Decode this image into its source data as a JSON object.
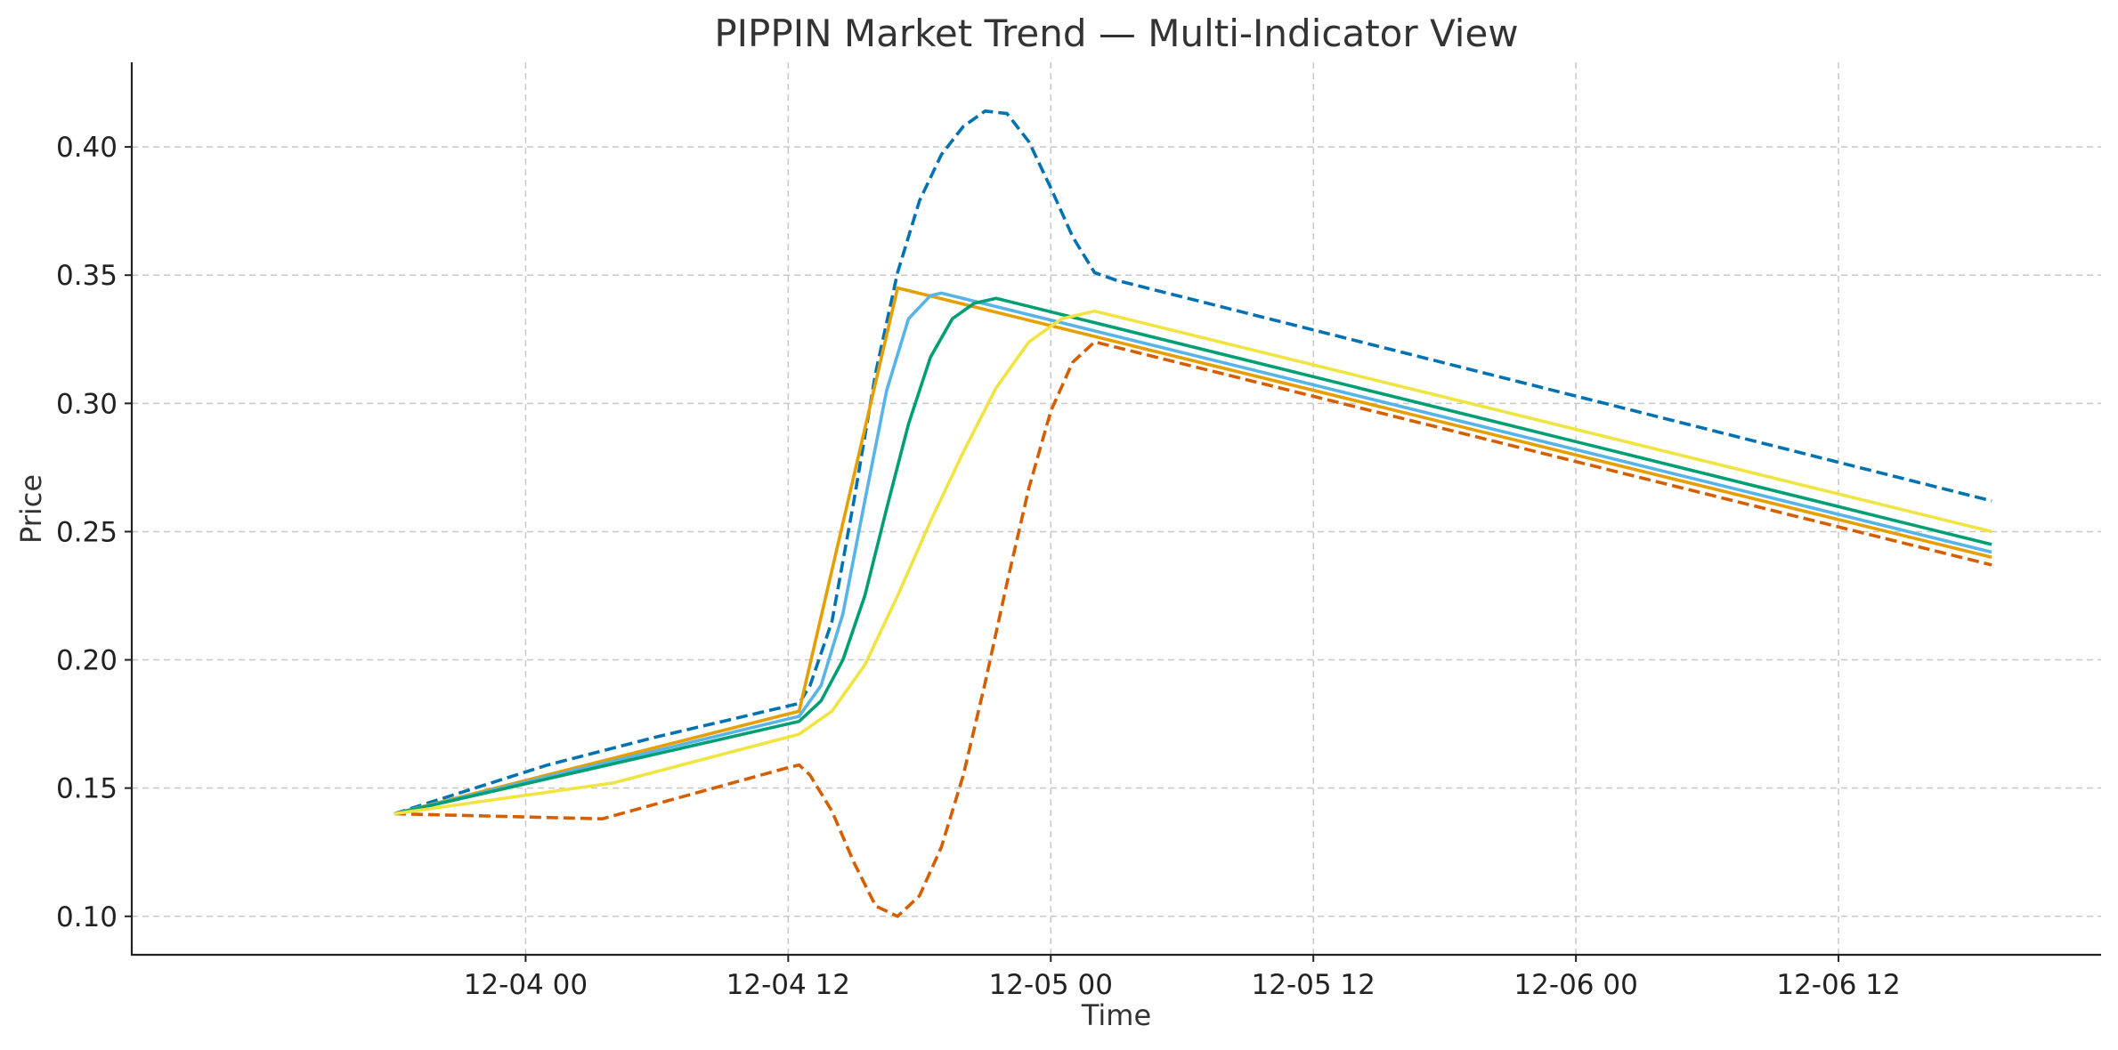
{
  "chart_data": {
    "type": "line",
    "title": "PIPPIN Market Trend — Multi-Indicator View",
    "xlabel": "Time",
    "ylabel": "Price",
    "x_type": "datetime",
    "xlim": [
      "2025-12-03 06:00",
      "2025-12-07 00:00"
    ],
    "ylim": [
      0.085,
      0.433
    ],
    "x_ticks": [
      {
        "value": "2025-12-04 00:00",
        "label": "12-04 00"
      },
      {
        "value": "2025-12-04 12:00",
        "label": "12-04 12"
      },
      {
        "value": "2025-12-05 00:00",
        "label": "12-05 00"
      },
      {
        "value": "2025-12-05 12:00",
        "label": "12-05 12"
      },
      {
        "value": "2025-12-06 00:00",
        "label": "12-06 00"
      },
      {
        "value": "2025-12-06 12:00",
        "label": "12-06 12"
      }
    ],
    "y_ticks": [
      {
        "value": 0.1,
        "label": "0.10"
      },
      {
        "value": 0.15,
        "label": "0.15"
      },
      {
        "value": 0.2,
        "label": "0.20"
      },
      {
        "value": 0.25,
        "label": "0.25"
      },
      {
        "value": 0.3,
        "label": "0.30"
      },
      {
        "value": 0.35,
        "label": "0.35"
      },
      {
        "value": 0.4,
        "label": "0.40"
      }
    ],
    "grid": true,
    "legend": "none",
    "series": [
      {
        "color": "#0072b2",
        "dash": "dashed",
        "points": [
          [
            "2025-12-03 18:00",
            0.14
          ],
          [
            "2025-12-04 01:00",
            0.159
          ],
          [
            "2025-12-04 06:00",
            0.17
          ],
          [
            "2025-12-04 12:00",
            0.182
          ],
          [
            "2025-12-04 12:30",
            0.183
          ],
          [
            "2025-12-04 13:00",
            0.19
          ],
          [
            "2025-12-04 14:00",
            0.215
          ],
          [
            "2025-12-04 15:00",
            0.262
          ],
          [
            "2025-12-04 16:00",
            0.312
          ],
          [
            "2025-12-04 17:00",
            0.351
          ],
          [
            "2025-12-04 18:00",
            0.379
          ],
          [
            "2025-12-04 19:00",
            0.397
          ],
          [
            "2025-12-04 20:00",
            0.408
          ],
          [
            "2025-12-04 21:00",
            0.414
          ],
          [
            "2025-12-04 22:00",
            0.413
          ],
          [
            "2025-12-04 23:00",
            0.402
          ],
          [
            "2025-12-05 00:00",
            0.384
          ],
          [
            "2025-12-05 01:00",
            0.365
          ],
          [
            "2025-12-05 02:00",
            0.351
          ],
          [
            "2025-12-05 03:00",
            0.348
          ],
          [
            "2025-12-06 19:00",
            0.262
          ]
        ]
      },
      {
        "color": "#d55e00",
        "dash": "dashed",
        "points": [
          [
            "2025-12-03 18:00",
            0.14
          ],
          [
            "2025-12-04 03:30",
            0.138
          ],
          [
            "2025-12-04 12:00",
            0.158
          ],
          [
            "2025-12-04 12:30",
            0.159
          ],
          [
            "2025-12-04 13:00",
            0.155
          ],
          [
            "2025-12-04 14:00",
            0.141
          ],
          [
            "2025-12-04 15:00",
            0.121
          ],
          [
            "2025-12-04 16:00",
            0.104
          ],
          [
            "2025-12-04 17:00",
            0.1
          ],
          [
            "2025-12-04 18:00",
            0.108
          ],
          [
            "2025-12-04 19:00",
            0.127
          ],
          [
            "2025-12-04 20:00",
            0.155
          ],
          [
            "2025-12-04 21:00",
            0.191
          ],
          [
            "2025-12-04 22:00",
            0.23
          ],
          [
            "2025-12-04 23:00",
            0.267
          ],
          [
            "2025-12-05 00:00",
            0.297
          ],
          [
            "2025-12-05 01:00",
            0.316
          ],
          [
            "2025-12-05 02:00",
            0.324
          ],
          [
            "2025-12-06 19:00",
            0.237
          ]
        ]
      },
      {
        "color": "#e69f00",
        "dash": "solid",
        "points": [
          [
            "2025-12-03 18:00",
            0.14
          ],
          [
            "2025-12-04 12:30",
            0.18
          ],
          [
            "2025-12-04 17:00",
            0.345
          ],
          [
            "2025-12-06 19:00",
            0.24
          ]
        ]
      },
      {
        "color": "#56b4e9",
        "dash": "solid",
        "points": [
          [
            "2025-12-03 18:00",
            0.14
          ],
          [
            "2025-12-04 12:30",
            0.178
          ],
          [
            "2025-12-04 13:30",
            0.19
          ],
          [
            "2025-12-04 14:30",
            0.218
          ],
          [
            "2025-12-04 15:30",
            0.262
          ],
          [
            "2025-12-04 16:30",
            0.305
          ],
          [
            "2025-12-04 17:30",
            0.333
          ],
          [
            "2025-12-04 18:30",
            0.342
          ],
          [
            "2025-12-04 19:00",
            0.343
          ],
          [
            "2025-12-06 19:00",
            0.242
          ]
        ]
      },
      {
        "color": "#009e73",
        "dash": "solid",
        "points": [
          [
            "2025-12-03 18:00",
            0.14
          ],
          [
            "2025-12-04 12:30",
            0.176
          ],
          [
            "2025-12-04 13:30",
            0.184
          ],
          [
            "2025-12-04 14:30",
            0.2
          ],
          [
            "2025-12-04 15:30",
            0.225
          ],
          [
            "2025-12-04 16:30",
            0.259
          ],
          [
            "2025-12-04 17:30",
            0.292
          ],
          [
            "2025-12-04 18:30",
            0.318
          ],
          [
            "2025-12-04 19:30",
            0.333
          ],
          [
            "2025-12-04 20:30",
            0.339
          ],
          [
            "2025-12-04 21:30",
            0.341
          ],
          [
            "2025-12-06 19:00",
            0.245
          ]
        ]
      },
      {
        "color": "#f0e442",
        "dash": "solid",
        "points": [
          [
            "2025-12-03 18:00",
            0.14
          ],
          [
            "2025-12-04 04:00",
            0.152
          ],
          [
            "2025-12-04 12:30",
            0.171
          ],
          [
            "2025-12-04 14:00",
            0.18
          ],
          [
            "2025-12-04 15:30",
            0.198
          ],
          [
            "2025-12-04 17:00",
            0.225
          ],
          [
            "2025-12-04 18:30",
            0.254
          ],
          [
            "2025-12-04 20:00",
            0.281
          ],
          [
            "2025-12-04 21:30",
            0.306
          ],
          [
            "2025-12-04 23:00",
            0.324
          ],
          [
            "2025-12-05 00:30",
            0.333
          ],
          [
            "2025-12-05 02:00",
            0.336
          ],
          [
            "2025-12-06 19:00",
            0.25
          ]
        ]
      }
    ]
  }
}
